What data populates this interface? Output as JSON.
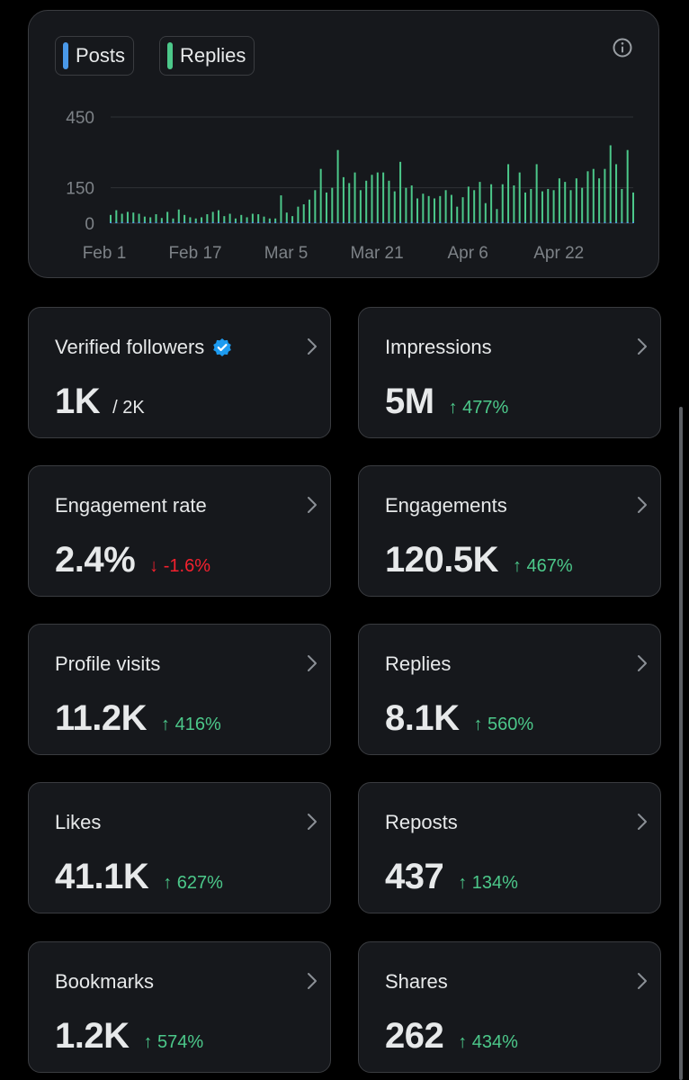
{
  "chart": {
    "legend": [
      {
        "label": "Posts",
        "color": "#4a99e9"
      },
      {
        "label": "Replies",
        "color": "#4cc88a"
      }
    ]
  },
  "chart_data": {
    "type": "bar",
    "y_ticks": [
      "450",
      "150",
      "0"
    ],
    "x_ticks": [
      "Feb 1",
      "Feb 17",
      "Mar 5",
      "Mar 21",
      "Apr 6",
      "Apr 22"
    ],
    "ylim": [
      0,
      450
    ],
    "grid": true,
    "legend_position": "top-left",
    "x_start_label": "Feb 1",
    "series": [
      {
        "name": "Replies",
        "color": "#4cc88a",
        "values": [
          35,
          55,
          40,
          48,
          45,
          40,
          28,
          25,
          38,
          22,
          48,
          20,
          58,
          35,
          25,
          20,
          25,
          38,
          48,
          55,
          30,
          40,
          20,
          35,
          25,
          40,
          38,
          28,
          20,
          20,
          118,
          45,
          30,
          70,
          80,
          100,
          140,
          230,
          130,
          150,
          310,
          195,
          170,
          215,
          140,
          180,
          205,
          215,
          215,
          180,
          135,
          260,
          150,
          160,
          105,
          125,
          115,
          105,
          115,
          140,
          120,
          70,
          110,
          155,
          140,
          175,
          85,
          165,
          60,
          165,
          250,
          160,
          215,
          130,
          145,
          250,
          135,
          145,
          140,
          190,
          175,
          140,
          190,
          150,
          220,
          230,
          190,
          230,
          330,
          250,
          145,
          310,
          130
        ]
      },
      {
        "name": "Posts",
        "color": "#4a99e9",
        "values": [
          5,
          5,
          5,
          5,
          5,
          5,
          5,
          5,
          5,
          5,
          5,
          5,
          5,
          5,
          5,
          5,
          5,
          5,
          5,
          5,
          5,
          5,
          5,
          5,
          5,
          5,
          5,
          5,
          5,
          5,
          5,
          5,
          5,
          5,
          5,
          5,
          5,
          5,
          5,
          5,
          5,
          5,
          5,
          5,
          5,
          5,
          5,
          5,
          5,
          5,
          5,
          5,
          5,
          5,
          5,
          5,
          5,
          5,
          5,
          5,
          5,
          5,
          5,
          5,
          5,
          5,
          5,
          5,
          5,
          5,
          5,
          5,
          5,
          5,
          5,
          5,
          5,
          5,
          5,
          5,
          5,
          5,
          5,
          5,
          5,
          5,
          5,
          5,
          5,
          5,
          5,
          5,
          5
        ]
      }
    ]
  },
  "stats": [
    {
      "label": "Verified followers",
      "value": "1K",
      "sub": "/ 2K",
      "change": "",
      "direction": "none",
      "verified_badge": true
    },
    {
      "label": "Impressions",
      "value": "5M",
      "sub": "",
      "change": "↑ 477%",
      "direction": "up"
    },
    {
      "label": "Engagement rate",
      "value": "2.4%",
      "sub": "",
      "change": "↓ -1.6%",
      "direction": "down"
    },
    {
      "label": "Engagements",
      "value": "120.5K",
      "sub": "",
      "change": "↑ 467%",
      "direction": "up"
    },
    {
      "label": "Profile visits",
      "value": "11.2K",
      "sub": "",
      "change": "↑ 416%",
      "direction": "up"
    },
    {
      "label": "Replies",
      "value": "8.1K",
      "sub": "",
      "change": "↑ 560%",
      "direction": "up"
    },
    {
      "label": "Likes",
      "value": "41.1K",
      "sub": "",
      "change": "↑ 627%",
      "direction": "up"
    },
    {
      "label": "Reposts",
      "value": "437",
      "sub": "",
      "change": "↑ 134%",
      "direction": "up"
    },
    {
      "label": "Bookmarks",
      "value": "1.2K",
      "sub": "",
      "change": "↑ 574%",
      "direction": "up"
    },
    {
      "label": "Shares",
      "value": "262",
      "sub": "",
      "change": "↑ 434%",
      "direction": "up"
    }
  ],
  "icons": {
    "info": "info-circle-icon",
    "chevron": "chevron-right-icon",
    "verified": "verified-badge-icon"
  }
}
